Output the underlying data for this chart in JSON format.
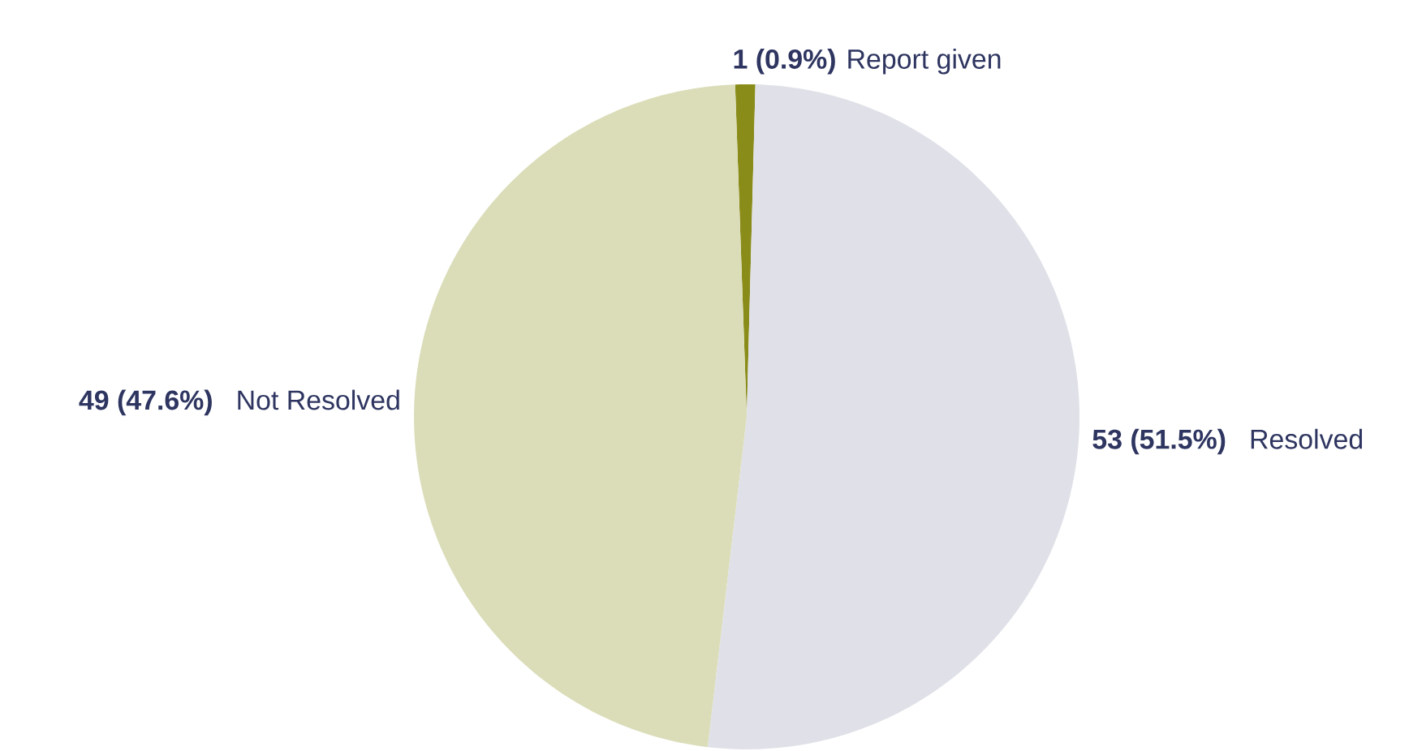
{
  "chart_data": {
    "type": "pie",
    "categories": [
      "Report given",
      "Resolved",
      "Not Resolved"
    ],
    "values": [
      1,
      53,
      49
    ],
    "value_labels": [
      "1 (0.9%)",
      "53 (51.5%)",
      "49 (47.6%)"
    ],
    "colors": [
      "#8a8c1a",
      "#e0e1e8",
      "#dbddb9"
    ]
  }
}
